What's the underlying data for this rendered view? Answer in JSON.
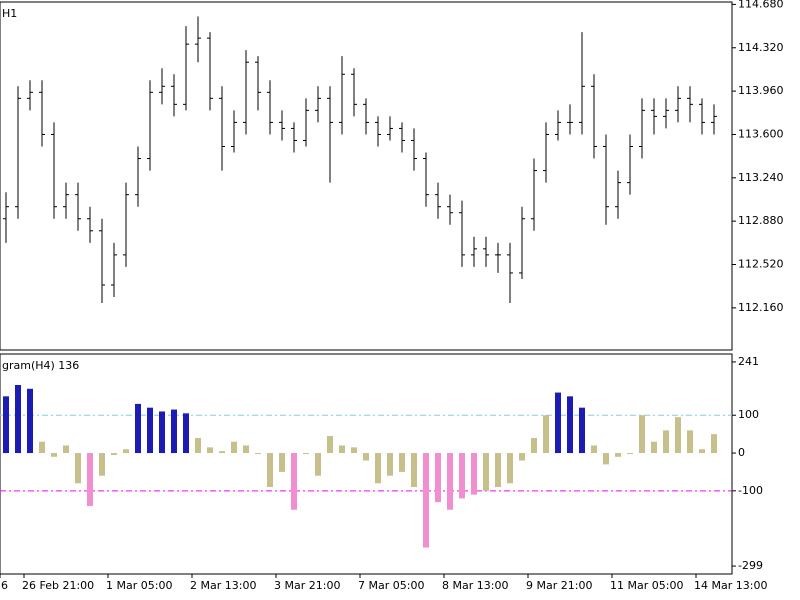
{
  "chart_data": [
    {
      "type": "ohlc",
      "title": "H1",
      "color": "#000000",
      "open": [
        112.9,
        113.0,
        113.9,
        113.95,
        113.6,
        113.0,
        113.1,
        112.9,
        112.8,
        112.35,
        112.6,
        113.1,
        113.4,
        113.95,
        114.0,
        113.85,
        114.35,
        114.4,
        113.9,
        113.5,
        113.7,
        114.2,
        113.95,
        113.7,
        113.65,
        113.55,
        113.8,
        113.9,
        113.7,
        114.1,
        113.85,
        113.7,
        113.6,
        113.65,
        113.55,
        113.4,
        113.1,
        113.0,
        112.95,
        112.6,
        112.65,
        112.6,
        112.6,
        112.45,
        112.9,
        113.3,
        113.6,
        113.7,
        113.7,
        114.0,
        113.5,
        113.0,
        113.2,
        113.5,
        113.8,
        113.75,
        113.8,
        113.9,
        113.85,
        113.7
      ],
      "high": [
        113.12,
        114.0,
        114.05,
        114.05,
        113.7,
        113.2,
        113.2,
        113.0,
        112.9,
        112.7,
        113.2,
        113.5,
        114.05,
        114.15,
        114.1,
        114.5,
        114.58,
        114.45,
        114.0,
        113.8,
        114.3,
        114.25,
        114.05,
        113.8,
        113.7,
        113.9,
        114.0,
        114.0,
        114.25,
        114.15,
        113.9,
        113.75,
        113.75,
        113.7,
        113.65,
        113.45,
        113.2,
        113.1,
        113.05,
        112.75,
        112.75,
        112.7,
        112.7,
        113.0,
        113.4,
        113.7,
        113.8,
        113.85,
        114.45,
        114.1,
        113.6,
        113.3,
        113.6,
        113.9,
        113.9,
        113.9,
        114.0,
        114.0,
        113.9,
        113.85
      ],
      "low": [
        112.7,
        112.9,
        113.8,
        113.5,
        112.9,
        112.9,
        112.8,
        112.7,
        112.2,
        112.25,
        112.5,
        113.0,
        113.3,
        113.85,
        113.75,
        113.8,
        114.2,
        113.8,
        113.3,
        113.45,
        113.6,
        113.8,
        113.6,
        113.55,
        113.45,
        113.5,
        113.7,
        113.2,
        113.6,
        113.75,
        113.6,
        113.5,
        113.55,
        113.45,
        113.3,
        113.0,
        112.9,
        112.85,
        112.5,
        112.5,
        112.5,
        112.45,
        112.2,
        112.4,
        112.8,
        113.2,
        113.55,
        113.6,
        113.6,
        113.4,
        112.85,
        112.9,
        113.1,
        113.4,
        113.6,
        113.65,
        113.7,
        113.7,
        113.6,
        113.6
      ],
      "close": [
        113.0,
        113.9,
        113.95,
        113.6,
        113.0,
        113.1,
        112.9,
        112.8,
        112.35,
        112.6,
        113.1,
        113.4,
        113.95,
        114.0,
        113.85,
        114.35,
        114.4,
        113.9,
        113.5,
        113.7,
        114.2,
        113.95,
        113.7,
        113.65,
        113.55,
        113.8,
        113.9,
        113.7,
        114.1,
        113.85,
        113.7,
        113.6,
        113.65,
        113.55,
        113.4,
        113.1,
        113.0,
        112.95,
        112.6,
        112.65,
        112.6,
        112.6,
        112.45,
        112.9,
        113.3,
        113.6,
        113.7,
        113.7,
        114.0,
        113.5,
        113.0,
        113.2,
        113.5,
        113.8,
        113.75,
        113.8,
        113.9,
        113.85,
        113.7,
        113.75
      ],
      "ylim": [
        111.81,
        114.7
      ],
      "yticks": [
        {
          "value": 114.68,
          "label": "114.680"
        },
        {
          "value": 114.32,
          "label": "114.320"
        },
        {
          "value": 113.96,
          "label": "113.960"
        },
        {
          "value": 113.6,
          "label": "113.600"
        },
        {
          "value": 113.24,
          "label": "113.240"
        },
        {
          "value": 112.88,
          "label": "112.880"
        },
        {
          "value": 112.52,
          "label": "112.520"
        },
        {
          "value": 112.16,
          "label": "112.160"
        }
      ]
    },
    {
      "type": "bar",
      "title": "gram(H4) 136",
      "values": [
        150,
        180,
        170,
        30,
        -10,
        20,
        -80,
        -140,
        -60,
        -5,
        10,
        130,
        120,
        110,
        115,
        105,
        40,
        15,
        5,
        30,
        20,
        0,
        -90,
        -50,
        -150,
        0,
        -60,
        45,
        20,
        15,
        -20,
        -80,
        -60,
        -50,
        -90,
        -250,
        -130,
        -150,
        -120,
        -110,
        -100,
        -90,
        -80,
        -20,
        40,
        100,
        160,
        150,
        120,
        20,
        -30,
        -10,
        0,
        100,
        30,
        60,
        95,
        60,
        10,
        50
      ],
      "categories": [
        "6",
        null,
        "26 Feb 21:00",
        null,
        null,
        null,
        null,
        null,
        null,
        "1 Mar 05:00",
        null,
        null,
        null,
        null,
        null,
        null,
        "2 Mar 13:00",
        null,
        null,
        null,
        null,
        null,
        null,
        "3 Mar 21:00",
        null,
        null,
        null,
        null,
        null,
        null,
        "7 Mar 05:00",
        null,
        null,
        null,
        null,
        null,
        null,
        "8 Mar 13:00",
        null,
        null,
        null,
        null,
        null,
        null,
        "9 Mar 21:00",
        null,
        null,
        null,
        null,
        null,
        null,
        "11 Mar 05:00",
        null,
        null,
        null,
        null,
        null,
        null,
        "14 Mar 13:00",
        null
      ],
      "ylim": [
        -320,
        262
      ],
      "yticks": [
        241,
        100,
        0,
        -100,
        -299
      ],
      "levels": [
        {
          "value": 100,
          "color": "#87cee0"
        },
        {
          "value": -100,
          "color": "#ff00ff"
        }
      ],
      "color_above": "#1c1cb4",
      "color_below": "#f08fd0",
      "color": "#c8c08c"
    }
  ]
}
